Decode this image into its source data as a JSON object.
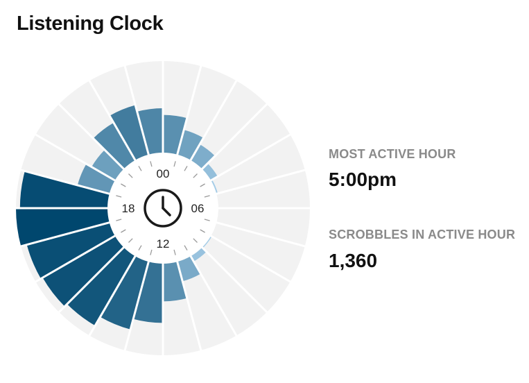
{
  "title": "Listening Clock",
  "stats": {
    "most_active_hour_label": "MOST ACTIVE HOUR",
    "most_active_hour_value": "5:00pm",
    "active_hour_scrobbles_label": "SCROBBLES IN ACTIVE HOUR",
    "active_hour_scrobbles_value": "1,360"
  },
  "colors": {
    "bar_dark": "#00476e",
    "bar_light": "#a9d0ea",
    "track": "#f2f2f2",
    "background": "#ffffff",
    "ink": "#222222"
  },
  "center_icon": "clock-icon",
  "chart_data": {
    "type": "radial-bar",
    "hour_labels": [
      "00",
      "06",
      "12",
      "18"
    ],
    "hours": [
      0,
      1,
      2,
      3,
      4,
      5,
      6,
      7,
      8,
      9,
      10,
      11,
      12,
      13,
      14,
      15,
      16,
      17,
      18,
      19,
      20,
      21,
      22,
      23
    ],
    "values": [
      560,
      380,
      270,
      115,
      20,
      0,
      0,
      0,
      15,
      90,
      300,
      560,
      880,
      1040,
      1190,
      1240,
      1270,
      1360,
      1300,
      490,
      400,
      640,
      760,
      660
    ],
    "max_value": 1360,
    "grid": false
  }
}
